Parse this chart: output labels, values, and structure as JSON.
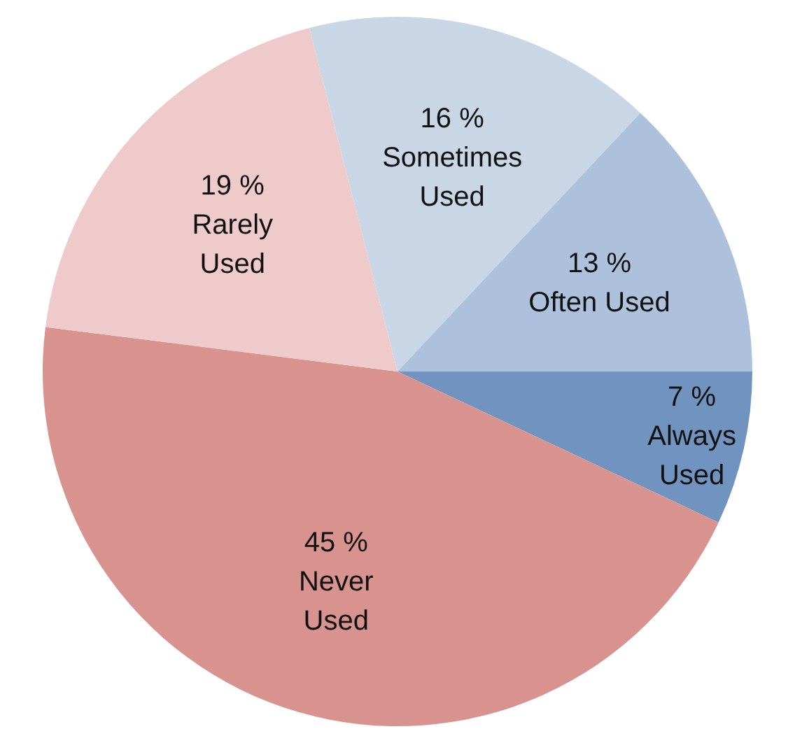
{
  "chart_data": {
    "type": "pie",
    "categories": [
      "Always Used",
      "Never Used",
      "Rarely Used",
      "Sometimes Used",
      "Often Used"
    ],
    "values": [
      7,
      45,
      19,
      16,
      13
    ],
    "colors": [
      "#7093c0",
      "#d9938f",
      "#eecbca",
      "#c9d6e6",
      "#adc1dc"
    ],
    "value_labels": [
      "7 %",
      "45 %",
      "19 %",
      "16 %",
      "13 %"
    ],
    "legend": false
  }
}
